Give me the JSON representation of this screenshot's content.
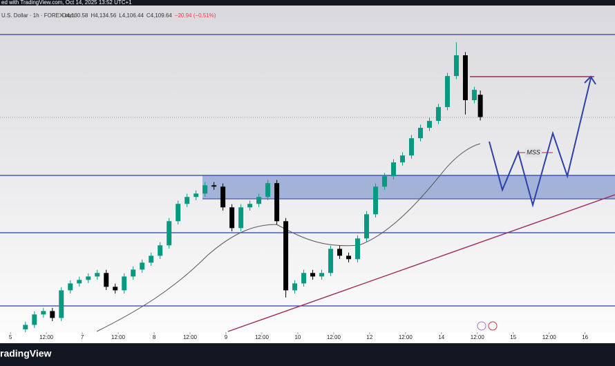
{
  "chart_data": {
    "type": "candlestick",
    "header": "ed with TradingView.com, Oct 14, 2025 13:52 UTC+1",
    "symbol": "U.S. Dollar · 1h · FOREX.com",
    "ohlc_labels": [
      "O4,130.58",
      "H4,134.56",
      "L4,106.44",
      "C4,109.64",
      "−20.94 (−0.51%)"
    ],
    "annotation": "MSS",
    "brand": "radingView",
    "up_color": "#089981",
    "down_color": "#000000",
    "x": [
      5,
      8,
      11,
      14,
      17,
      20,
      23,
      26,
      29,
      32,
      35,
      38,
      41,
      44,
      47,
      50,
      53,
      56,
      59,
      62,
      65,
      68,
      71,
      74,
      77,
      80,
      83,
      86,
      89,
      92,
      95,
      98,
      101,
      104,
      107,
      110,
      113,
      116,
      119,
      122,
      125,
      128,
      131,
      134,
      137,
      140,
      143,
      146,
      149,
      152,
      155,
      157
    ],
    "open": [
      3910.0,
      3914.2,
      3924.0,
      3927.2,
      3920.7,
      3946.7,
      3953.2,
      3956.5,
      3959.7,
      3963.0,
      3950.0,
      3946.7,
      3959.7,
      3966.2,
      3972.7,
      3979.2,
      3989.0,
      4011.7,
      4028.0,
      4034.5,
      4037.7,
      4045.5,
      4044.2,
      4024.7,
      4005.2,
      4024.7,
      4028.0,
      4034.5,
      4047.5,
      4011.7,
      3946.7,
      3953.2,
      3963.0,
      3959.7,
      3963.0,
      3985.7,
      3979.2,
      3976.0,
      3995.5,
      4018.2,
      4044.2,
      4054.0,
      4067.0,
      4073.5,
      4089.7,
      4099.5,
      4106.0,
      4119.0,
      4148.2,
      4167.7,
      4125.5,
      4130.58
    ],
    "high": [
      3917.2,
      3927,
      3930.2,
      3930.2,
      3949.7,
      3956.2,
      3959.5,
      3962.7,
      3966,
      3966,
      3953,
      3962.7,
      3969.2,
      3975.7,
      3982.2,
      3992,
      4014.7,
      4031,
      4037.5,
      4040.7,
      4048.5,
      4048.5,
      4047.2,
      4027.7,
      4027.7,
      4031,
      4037.5,
      4050.5,
      4050.5,
      4014.7,
      3956.2,
      3966,
      3966,
      3966,
      3988.7,
      3988.7,
      3982.2,
      3998.5,
      4021.2,
      4047.2,
      4057,
      4070,
      4076.5,
      4092.7,
      4102.5,
      4109,
      4122,
      4151.2,
      4180,
      4170.7,
      4138.2,
      4134.56
    ],
    "low": [
      3907,
      3911.2,
      3921,
      3917.7,
      3917.7,
      3943.7,
      3950.2,
      3953.5,
      3956.7,
      3947,
      3943.7,
      3943.7,
      3956.7,
      3963.2,
      3969.7,
      3976.2,
      3986,
      4008.7,
      4025,
      4031.5,
      4034.7,
      4041.2,
      4021.7,
      4002.2,
      4002.2,
      4021.7,
      4025,
      4031.5,
      4008.7,
      3940,
      3943.7,
      3950.2,
      3956.7,
      3956.7,
      3960,
      3976.2,
      3973,
      3973,
      3992.5,
      4015.2,
      4041.2,
      4051,
      4064,
      4070.5,
      4086.7,
      4096.5,
      4103,
      4116,
      4145.2,
      4112,
      4122.5,
      4106.44
    ],
    "close": [
      3914.2,
      3924.0,
      3927.2,
      3920.7,
      3946.7,
      3953.2,
      3956.5,
      3959.7,
      3963.0,
      3950.0,
      3946.7,
      3959.7,
      3966.2,
      3972.7,
      3979.2,
      3989.0,
      4011.7,
      4028.0,
      4034.5,
      4037.7,
      4045.5,
      4044.2,
      4024.7,
      4005.2,
      4024.7,
      4028.0,
      4034.5,
      4047.5,
      4011.7,
      3946.7,
      3953.2,
      3963.0,
      3959.7,
      3963.0,
      3985.7,
      3979.2,
      3976.0,
      3995.5,
      4018.2,
      4044.2,
      4054.0,
      4067.0,
      4073.5,
      4089.7,
      4099.5,
      4106.0,
      4119.0,
      4148.2,
      4167.7,
      4125.5,
      4135.2,
      4109.64
    ],
    "xlim": [
      -3.5,
      202
    ],
    "ylim": [
      3908,
      4208
    ],
    "xticks": [
      {
        "value": 0,
        "label": "5"
      },
      {
        "value": 12,
        "label": "12:00"
      },
      {
        "value": 24,
        "label": "7"
      },
      {
        "value": 36,
        "label": "12:00"
      },
      {
        "value": 48,
        "label": "8"
      },
      {
        "value": 60,
        "label": "12:00"
      },
      {
        "value": 72,
        "label": "9"
      },
      {
        "value": 84,
        "label": "12:00"
      },
      {
        "value": 96,
        "label": "10"
      },
      {
        "value": 108,
        "label": "12:00"
      },
      {
        "value": 120,
        "label": "12"
      },
      {
        "value": 132,
        "label": "12:00"
      },
      {
        "value": 144,
        "label": "14"
      },
      {
        "value": 156,
        "label": "12:00"
      },
      {
        "value": 168,
        "label": "15"
      },
      {
        "value": 180,
        "label": "12:00"
      },
      {
        "value": 192,
        "label": "16"
      }
    ]
  }
}
